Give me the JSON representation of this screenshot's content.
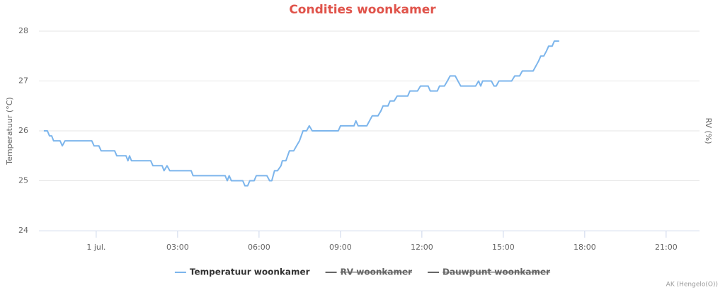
{
  "chart_data": {
    "type": "line",
    "title": "Condities woonkamer",
    "y_label": "Temperatuur (°C)",
    "y2_label": "RV (%)",
    "xlim": [
      -2.11,
      22.23
    ],
    "xticks": [
      {
        "value": 0,
        "label": "1 jul."
      },
      {
        "value": 3,
        "label": "03:00"
      },
      {
        "value": 6,
        "label": "06:00"
      },
      {
        "value": 9,
        "label": "09:00"
      },
      {
        "value": 12,
        "label": "12:00"
      },
      {
        "value": 15,
        "label": "15:00"
      },
      {
        "value": 18,
        "label": "18:00"
      },
      {
        "value": 21,
        "label": "21:00"
      }
    ],
    "ylim": [
      24,
      28
    ],
    "yticks": [
      24,
      25,
      26,
      27,
      28
    ],
    "grid": true,
    "x": [
      -1.93,
      -1.8,
      -1.72,
      -1.64,
      -1.57,
      -1.33,
      -1.25,
      -1.15,
      -0.16,
      -0.08,
      0.1,
      0.18,
      0.68,
      0.76,
      1.1,
      1.17,
      1.23,
      1.3,
      2.01,
      2.09,
      2.43,
      2.5,
      2.61,
      2.71,
      3.5,
      3.57,
      4.75,
      4.83,
      4.9,
      4.98,
      5.4,
      5.48,
      5.58,
      5.66,
      5.82,
      5.9,
      6.29,
      6.39,
      6.47,
      6.57,
      6.68,
      6.81,
      6.86,
      6.99,
      7.12,
      7.28,
      7.38,
      7.49,
      7.62,
      7.75,
      7.85,
      7.96,
      8.92,
      9.0,
      9.5,
      9.57,
      9.65,
      9.97,
      10.07,
      10.17,
      10.38,
      10.49,
      10.57,
      10.75,
      10.83,
      10.98,
      11.09,
      11.48,
      11.56,
      11.84,
      11.95,
      12.23,
      12.31,
      12.57,
      12.65,
      12.83,
      12.94,
      13.04,
      13.23,
      13.33,
      13.43,
      13.98,
      14.09,
      14.17,
      14.24,
      14.56,
      14.66,
      14.74,
      14.84,
      15.31,
      15.42,
      15.6,
      15.7,
      16.1,
      16.2,
      16.3,
      16.38,
      16.49,
      16.59,
      16.67,
      16.8,
      16.88,
      17.06
    ],
    "series": [
      {
        "name": "Temperatuur woonkamer",
        "color": "#7cb5ec",
        "visible": true,
        "values": [
          26.0,
          26.0,
          25.9,
          25.9,
          25.8,
          25.8,
          25.7,
          25.8,
          25.8,
          25.7,
          25.7,
          25.6,
          25.6,
          25.5,
          25.5,
          25.4,
          25.5,
          25.4,
          25.4,
          25.3,
          25.3,
          25.2,
          25.3,
          25.2,
          25.2,
          25.1,
          25.1,
          25.0,
          25.1,
          25.0,
          25.0,
          24.9,
          24.9,
          25.0,
          25.0,
          25.1,
          25.1,
          25.0,
          25.0,
          25.2,
          25.2,
          25.3,
          25.4,
          25.4,
          25.6,
          25.6,
          25.7,
          25.8,
          26.0,
          26.0,
          26.1,
          26.0,
          26.0,
          26.1,
          26.1,
          26.2,
          26.1,
          26.1,
          26.2,
          26.3,
          26.3,
          26.4,
          26.5,
          26.5,
          26.6,
          26.6,
          26.7,
          26.7,
          26.8,
          26.8,
          26.9,
          26.9,
          26.8,
          26.8,
          26.9,
          26.9,
          27.0,
          27.1,
          27.1,
          27.0,
          26.9,
          26.9,
          27.0,
          26.9,
          27.0,
          27.0,
          26.9,
          26.9,
          27.0,
          27.0,
          27.1,
          27.1,
          27.2,
          27.2,
          27.3,
          27.4,
          27.5,
          27.5,
          27.6,
          27.7,
          27.7,
          27.8,
          27.8
        ]
      },
      {
        "name": "RV woonkamer",
        "color": "#666666",
        "visible": false,
        "axis": "y2"
      },
      {
        "name": "Dauwpunt woonkamer",
        "color": "#666666",
        "visible": false
      }
    ],
    "credits": "AK (Hengelo(O))"
  }
}
